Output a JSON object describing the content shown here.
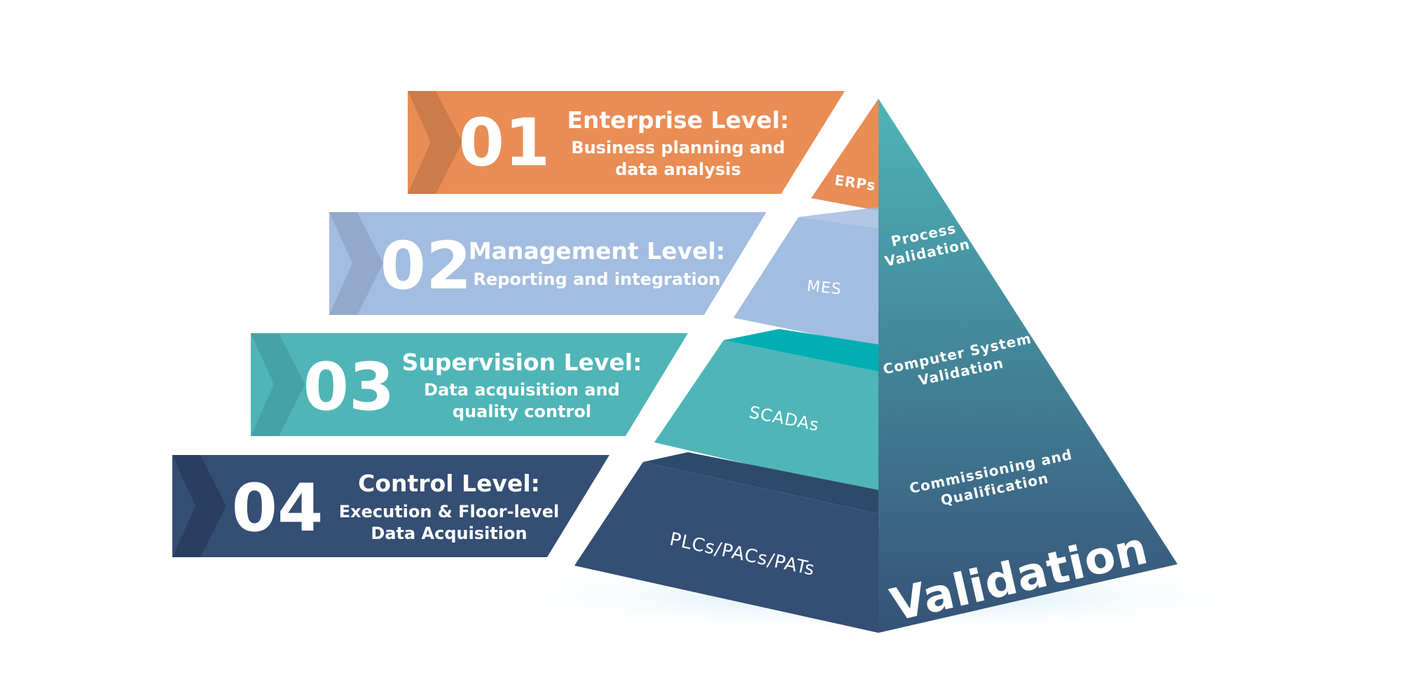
{
  "colors": {
    "level1": "#E98D55",
    "level2": "#A3BDE0",
    "level3": "#4FB5B7",
    "level4": "#344E74",
    "side_top": "#4FB5B7",
    "side_bottom": "#365277"
  },
  "levels": [
    {
      "number": "01",
      "title": "Enterprise Level:",
      "line1": "Business planning and",
      "line2": "data analysis",
      "face_label": "ERPs"
    },
    {
      "number": "02",
      "title": "Management Level:",
      "line1": "Reporting and integration",
      "line2": "",
      "face_label": "MES"
    },
    {
      "number": "03",
      "title": "Supervision Level:",
      "line1": "Data acquisition and",
      "line2": "quality control",
      "face_label": "SCADAs"
    },
    {
      "number": "04",
      "title": "Control Level:",
      "line1": "Execution & Floor-level",
      "line2": "Data Acquisition",
      "face_label": "PLCs/PACs/PATs"
    }
  ],
  "validation": {
    "title": "Validation",
    "items": [
      {
        "line1": "Process",
        "line2": "Validation"
      },
      {
        "line1": "Computer System",
        "line2": "Validation"
      },
      {
        "line1": "Commissioning and",
        "line2": "Qualification"
      }
    ]
  }
}
